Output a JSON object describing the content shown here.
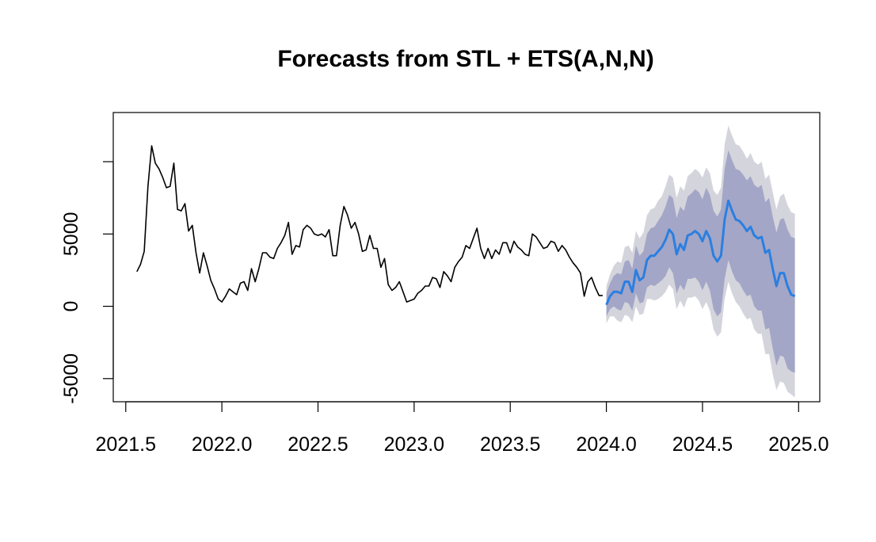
{
  "chart_data": {
    "type": "line",
    "title": "Forecasts from STL +  ETS(A,N,N)",
    "xlabel": "",
    "ylabel": "",
    "xlim": [
      2021.435,
      2025.11
    ],
    "ylim": [
      -6600,
      13400
    ],
    "x_ticks": [
      2021.5,
      2022.0,
      2022.5,
      2023.0,
      2023.5,
      2024.0,
      2024.5,
      2025.0
    ],
    "x_tick_labels": [
      "2021.5",
      "2022.0",
      "2022.5",
      "2023.0",
      "2023.5",
      "2024.0",
      "2024.5",
      "2025.0"
    ],
    "y_ticks": [
      -5000,
      0,
      5000,
      10000
    ],
    "y_tick_labels": [
      "-5000",
      "0",
      "5000",
      ""
    ],
    "grid": false,
    "colors": {
      "history": "#000000",
      "forecast": "#2B7FE0",
      "pi80": "#A3A6C7",
      "pi95": "#D4D4DC"
    },
    "series": [
      {
        "role": "history",
        "start": 2021.5577,
        "step": 0.019231,
        "values": [
          2400,
          2900,
          3800,
          8300,
          11100,
          9900,
          9500,
          8900,
          8200,
          8300,
          9900,
          6700,
          6600,
          7100,
          5200,
          5600,
          3700,
          2300,
          3700,
          2800,
          1800,
          1200,
          500,
          300,
          700,
          1200,
          1000,
          800,
          1600,
          1700,
          1100,
          2600,
          1700,
          2600,
          3700,
          3700,
          3400,
          3300,
          4000,
          4400,
          4900,
          5800,
          3600,
          4200,
          4100,
          5300,
          5600,
          5400,
          5000,
          4900,
          5000,
          4800,
          5300,
          3500,
          3500,
          5600,
          6900,
          6300,
          5400,
          5800,
          5000,
          3800,
          3900,
          4900,
          4000,
          4000,
          2700,
          3300,
          1500,
          1100,
          1300,
          1700,
          1000,
          300,
          400,
          500,
          900,
          1100,
          1400,
          1400,
          2000,
          1900,
          1300,
          2400,
          2100,
          1700,
          2700,
          3100,
          3400,
          4200,
          4000,
          4700,
          5400,
          4000,
          3300,
          4000,
          3300,
          3900,
          3600,
          4400,
          4400,
          3700,
          4500,
          4100,
          3900,
          3600,
          3500,
          5000,
          4800,
          4400,
          4000,
          4100,
          4500,
          4400,
          3800,
          4200,
          3900,
          3400,
          3000,
          2700,
          2300,
          700,
          1700,
          2000,
          1300,
          750,
          750
        ]
      },
      {
        "role": "forecast",
        "name": "",
        "start": 2024.0,
        "step": 0.019231,
        "values": [
          100,
          700,
          1000,
          1000,
          900,
          1700,
          1700,
          1000,
          2500,
          1800,
          2000,
          3200,
          3500,
          3500,
          3800,
          4100,
          4600,
          5300,
          5000,
          3600,
          4300,
          3900,
          4900,
          5000,
          5200,
          5000,
          4500,
          5200,
          4700,
          3500,
          3100,
          3500,
          6000,
          7300,
          6600,
          6000,
          5900,
          5600,
          5200,
          5500,
          4900,
          4700,
          4800,
          3700,
          3900,
          2600,
          1400,
          2300,
          2300,
          1400,
          800,
          700
        ]
      }
    ],
    "intervals": [
      {
        "level": "95%",
        "lower": [
          -1200,
          -700,
          -700,
          -1000,
          -1100,
          -600,
          -700,
          -1100,
          0,
          -600,
          -500,
          500,
          500,
          400,
          500,
          700,
          1000,
          1500,
          1200,
          -200,
          400,
          -100,
          600,
          600,
          700,
          400,
          -200,
          300,
          -300,
          -1600,
          -2100,
          -1800,
          500,
          1700,
          900,
          300,
          0,
          -500,
          -900,
          -800,
          -1600,
          -1900,
          -1900,
          -3300,
          -3300,
          -4700,
          -5800,
          -5200,
          -5300,
          -5900,
          -6100,
          -6300
        ],
        "upper": [
          1400,
          2200,
          2800,
          3100,
          3000,
          4100,
          4200,
          3700,
          5200,
          4700,
          5100,
          6300,
          6700,
          6800,
          7300,
          7600,
          8300,
          9100,
          8900,
          7500,
          8300,
          8000,
          9000,
          9200,
          9500,
          9300,
          8900,
          9600,
          9200,
          8000,
          7700,
          8200,
          11200,
          12500,
          11800,
          11200,
          11100,
          10700,
          10200,
          10600,
          10000,
          9800,
          10000,
          8800,
          9100,
          7900,
          6700,
          7600,
          7800,
          7000,
          6500,
          6400
        ]
      },
      {
        "level": "80%",
        "lower": [
          -700,
          -200,
          0,
          -200,
          -300,
          300,
          200,
          -300,
          900,
          200,
          300,
          1300,
          1500,
          1400,
          1600,
          1800,
          2100,
          2700,
          2300,
          900,
          1500,
          1100,
          1900,
          1900,
          2000,
          1700,
          1100,
          1700,
          1100,
          -200,
          -700,
          -400,
          1900,
          3200,
          2400,
          1800,
          1600,
          1100,
          700,
          800,
          0,
          -300,
          -300,
          -1600,
          -1500,
          -2900,
          -4100,
          -3400,
          -3500,
          -4300,
          -4500,
          -4600
        ],
        "upper": [
          900,
          1600,
          2100,
          2300,
          2200,
          3100,
          3200,
          2600,
          4200,
          3500,
          3800,
          5000,
          5400,
          5500,
          5900,
          6300,
          6900,
          7700,
          7500,
          6100,
          6900,
          6600,
          7600,
          7800,
          8100,
          7900,
          7400,
          8200,
          7700,
          6600,
          6200,
          6700,
          9500,
          10800,
          10100,
          9500,
          9400,
          9100,
          8700,
          9000,
          8400,
          8200,
          8400,
          7200,
          7500,
          6200,
          5100,
          6000,
          6100,
          5300,
          4800,
          4700
        ]
      }
    ]
  }
}
